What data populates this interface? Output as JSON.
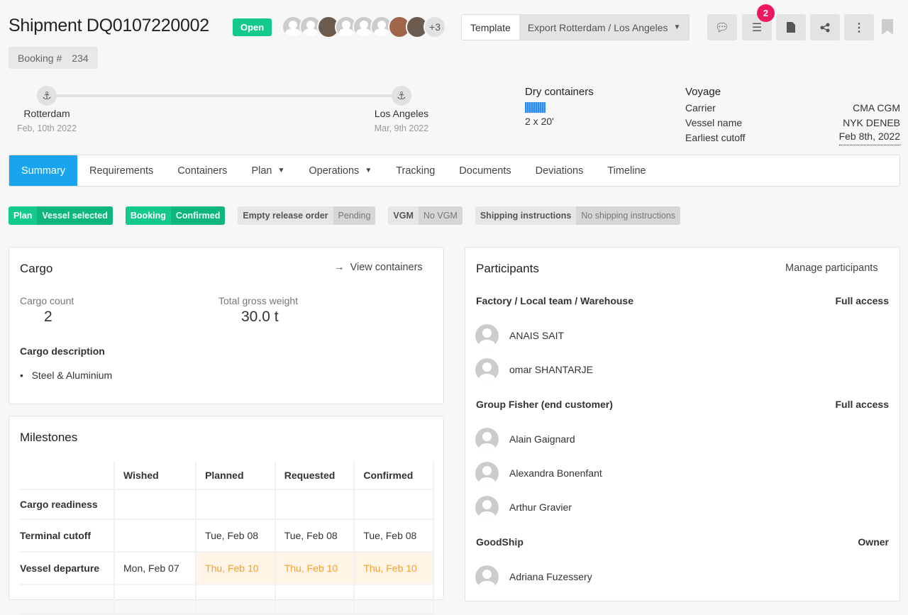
{
  "header": {
    "title": "Shipment DQ0107220002",
    "status": "Open",
    "more_participants": "+3",
    "booking_label": "Booking #",
    "booking_value": "234",
    "template_label": "Template",
    "template_value": "Export Rotterdam / Los Angeles",
    "tasks_badge": "2"
  },
  "route": {
    "origin": {
      "port": "Rotterdam",
      "date": "Feb, 10th 2022"
    },
    "destination": {
      "port": "Los Angeles",
      "date": "Mar, 9th 2022"
    }
  },
  "containers": {
    "title": "Dry containers",
    "value": "2 x 20'",
    "color": "#2b8cf0"
  },
  "voyage": {
    "title": "Voyage",
    "rows": [
      {
        "label": "Carrier",
        "value": "CMA CGM"
      },
      {
        "label": "Vessel name",
        "value": "NYK DENEB"
      },
      {
        "label": "Earliest cutoff",
        "value": "Feb 8th, 2022"
      }
    ]
  },
  "tabs": [
    {
      "label": "Summary"
    },
    {
      "label": "Requirements"
    },
    {
      "label": "Containers"
    },
    {
      "label": "Plan"
    },
    {
      "label": "Operations"
    },
    {
      "label": "Tracking"
    },
    {
      "label": "Documents"
    },
    {
      "label": "Deviations"
    },
    {
      "label": "Timeline"
    }
  ],
  "chips": [
    {
      "a": "Plan",
      "b": "Vessel selected"
    },
    {
      "a": "Booking",
      "b": "Confirmed"
    },
    {
      "a": "Empty release order",
      "b": "Pending"
    },
    {
      "a": "VGM",
      "b": "No VGM"
    },
    {
      "a": "Shipping instructions",
      "b": "No shipping instructions"
    }
  ],
  "cargo": {
    "title": "Cargo",
    "view_link": "View containers",
    "count_label": "Cargo count",
    "count": "2",
    "weight_label": "Total gross weight",
    "weight": "30.0 t",
    "desc_label": "Cargo description",
    "items": [
      "Steel & Aluminium"
    ]
  },
  "milestones": {
    "title": "Milestones",
    "columns": [
      "Wished",
      "Planned",
      "Requested",
      "Confirmed"
    ],
    "rows": [
      {
        "label": "Cargo readiness",
        "cells": [
          "",
          "",
          "",
          ""
        ]
      },
      {
        "label": "Terminal cutoff",
        "cells": [
          "",
          "Tue, Feb 08",
          "Tue, Feb 08",
          "Tue, Feb 08"
        ]
      },
      {
        "label": "Vessel departure",
        "cells": [
          "Mon, Feb 07",
          "Thu, Feb 10",
          "Thu, Feb 10",
          "Thu, Feb 10"
        ]
      }
    ]
  },
  "participants": {
    "title": "Participants",
    "manage": "Manage participants",
    "groups": [
      {
        "name": "Factory / Local team / Warehouse",
        "access": "Full access",
        "members": [
          "ANAIS SAIT",
          "omar SHANTARJE"
        ]
      },
      {
        "name": "Group Fisher (end customer)",
        "access": "Full access",
        "members": [
          "Alain Gaignard",
          "Alexandra Bonenfant",
          "Arthur Gravier"
        ]
      },
      {
        "name": "GoodShip",
        "access": "Owner",
        "members": [
          "Adriana Fuzessery"
        ]
      }
    ]
  },
  "colors": {
    "accent": "#1aa3ef",
    "success": "#13c98e",
    "warning": "#f5a030",
    "badge": "#ee1661"
  }
}
